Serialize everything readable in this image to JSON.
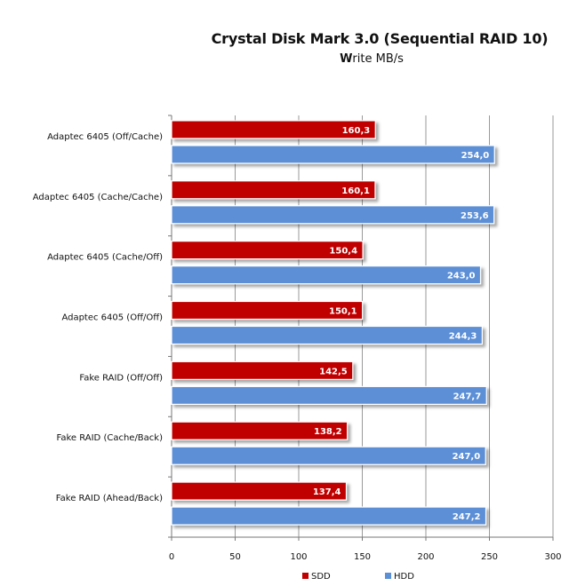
{
  "chart_data": {
    "type": "bar",
    "orientation": "horizontal",
    "title": "Crystal Disk Mark 3.0 (Sequential RAID 10)",
    "subtitle_bold": "W",
    "subtitle_rest": "rite MB/s",
    "categories": [
      "Adaptec 6405 (Off/Cache)",
      "Adaptec 6405 (Cache/Cache)",
      "Adaptec 6405 (Cache/Off)",
      "Adaptec 6405 (Off/Off)",
      "Fake RAID (Off/Off)",
      "Fake RAID (Cache/Back)",
      "Fake RAID (Ahead/Back)"
    ],
    "series": [
      {
        "name": "SDD",
        "color": "#C00000",
        "values": [
          160.3,
          160.1,
          150.4,
          150.1,
          142.5,
          138.2,
          137.4
        ],
        "labels": [
          "160,3",
          "160,1",
          "150,4",
          "150,1",
          "142,5",
          "138,2",
          "137,4"
        ]
      },
      {
        "name": "HDD",
        "color": "#5B8FD6",
        "values": [
          254.0,
          253.6,
          243.0,
          244.3,
          247.7,
          247.0,
          247.2
        ],
        "labels": [
          "254,0",
          "253,6",
          "243,0",
          "244,3",
          "247,7",
          "247,0",
          "247,2"
        ]
      }
    ],
    "xlim": [
      0,
      300
    ],
    "xticks": [
      0,
      50,
      100,
      150,
      200,
      250,
      300
    ],
    "grid": true,
    "legend": "bottom"
  }
}
